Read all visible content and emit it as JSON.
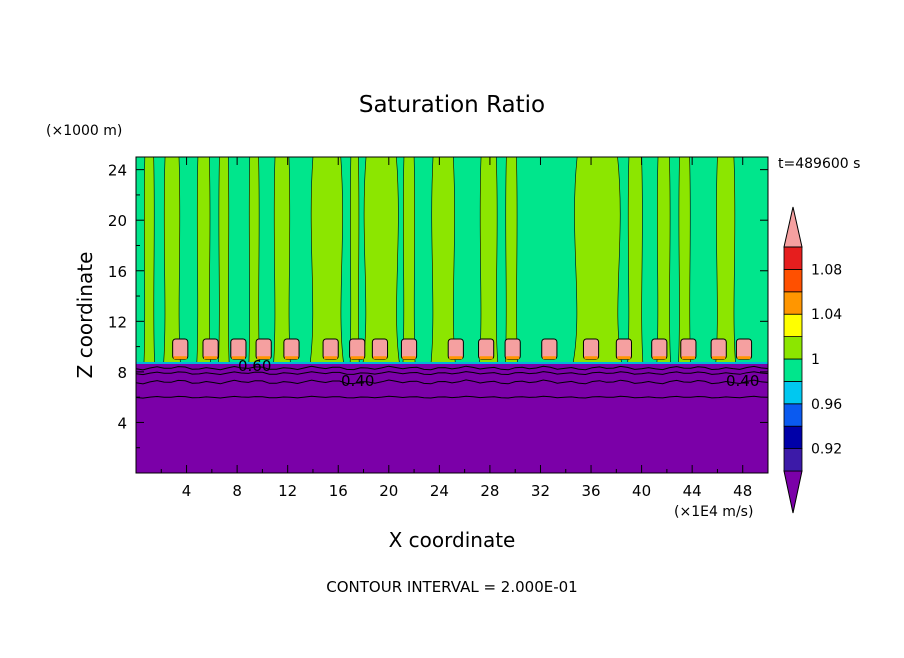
{
  "chart_data": {
    "type": "heatmap",
    "title": "Saturation Ratio",
    "y_unit": "(×1000 m)",
    "x_unit": "(×1E4 m/s)",
    "time_label": "t=489600 s",
    "xlabel": "X coordinate",
    "ylabel": "Z coordinate",
    "footer": "CONTOUR INTERVAL = 2.000E-01",
    "xlim": [
      0,
      50
    ],
    "ylim": [
      0,
      25
    ],
    "x_ticks": [
      "4",
      "8",
      "12",
      "16",
      "20",
      "24",
      "28",
      "32",
      "36",
      "40",
      "44",
      "48"
    ],
    "y_ticks": [
      "4",
      "8",
      "12",
      "16",
      "20",
      "24"
    ],
    "colorbar": {
      "levels": [
        0.92,
        0.94,
        0.96,
        0.98,
        1.0,
        1.02,
        1.04,
        1.06,
        1.08,
        1.1
      ],
      "labels": [
        "0.92",
        "0.96",
        "1",
        "1.04",
        "1.08"
      ],
      "colors": [
        "#7b00a8",
        "#3c1aa8",
        "#0000a8",
        "#0a5af0",
        "#00c8f0",
        "#00e68c",
        "#8ce600",
        "#ffff00",
        "#ff9600",
        "#ff5000",
        "#e61e1e",
        "#f5a0a0"
      ]
    },
    "contour_labels": [
      "0.60",
      "0.40",
      "0.40"
    ],
    "regions": {
      "dry_layer_top_z": 8.7,
      "dry_value": "< 0.92",
      "upper_layer_values": [
        "0.98–1.00",
        "1.00–1.02"
      ],
      "supersaturated_cells_z": [
        9.0,
        10.6
      ],
      "supersaturated_cells_x": [
        3.5,
        5.9,
        8.1,
        10.1,
        12.3,
        15.4,
        17.5,
        19.3,
        21.6,
        25.3,
        27.7,
        29.8,
        32.7,
        36.0,
        38.6,
        41.4,
        43.7,
        46.1,
        48.1
      ]
    }
  }
}
